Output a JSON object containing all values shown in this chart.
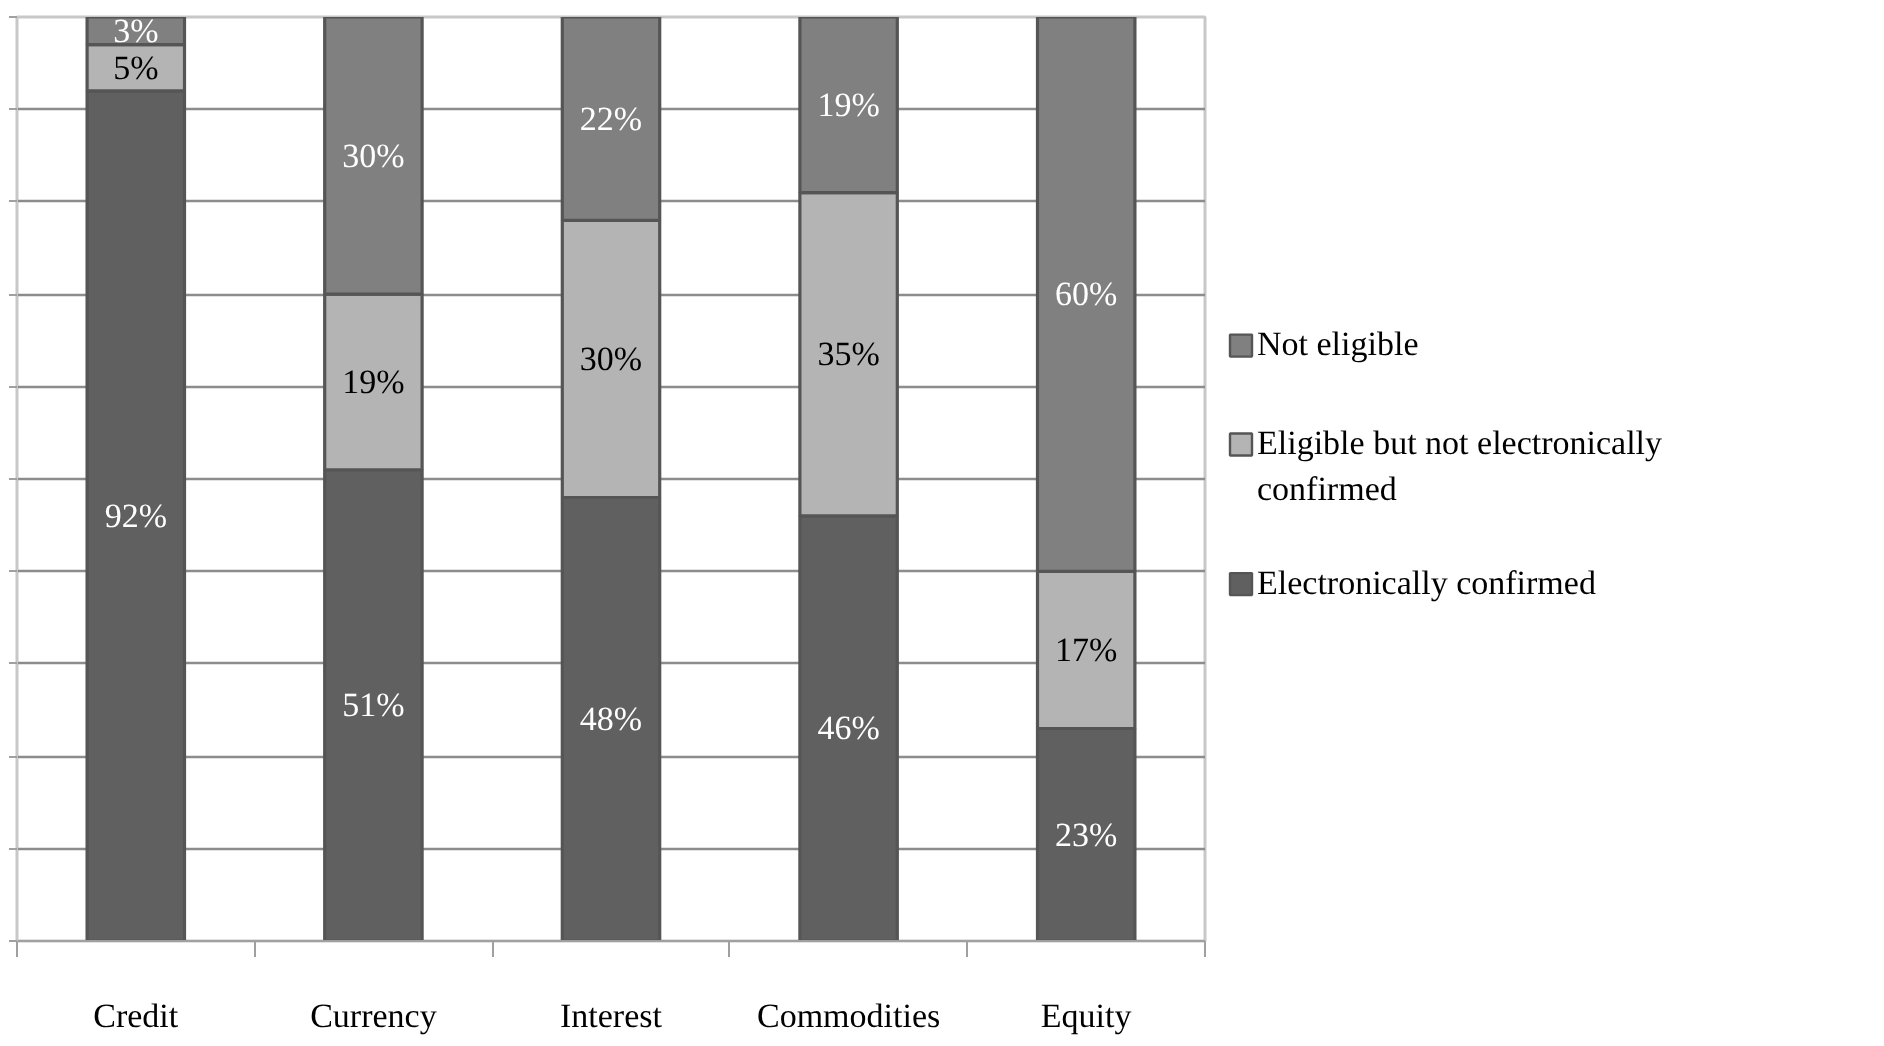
{
  "chart_data": {
    "type": "bar",
    "stacked": true,
    "categories": [
      "Credit",
      "Currency",
      "Interest",
      "Commodities",
      "Equity"
    ],
    "series": [
      {
        "name": "Electronically confirmed",
        "color": "#606060",
        "values": [
          92,
          51,
          48,
          46,
          23
        ],
        "value_labels": [
          "92%",
          "51%",
          "48%",
          "46%",
          "23%"
        ]
      },
      {
        "name": "Eligible but not electronically confirmed",
        "color": "#b4b4b4",
        "values": [
          5,
          19,
          30,
          35,
          17
        ],
        "value_labels": [
          "5%",
          "19%",
          "30%",
          "35%",
          "17%"
        ]
      },
      {
        "name": "Not eligible",
        "color": "#808080",
        "values": [
          3,
          30,
          22,
          19,
          60
        ],
        "value_labels": [
          "3%",
          "30%",
          "22%",
          "19%",
          "60%"
        ]
      }
    ],
    "ylim": [
      0,
      100
    ],
    "yticks": [
      {
        "value": 0,
        "label": null
      },
      {
        "value": 10,
        "label": null
      },
      {
        "value": 20,
        "label": null
      },
      {
        "value": 30,
        "label": null
      },
      {
        "value": 40,
        "label": null
      },
      {
        "value": 50,
        "label": null
      },
      {
        "value": 60,
        "label": null
      },
      {
        "value": 70,
        "label": null
      },
      {
        "value": 80,
        "label": null
      },
      {
        "value": 90,
        "label": null
      },
      {
        "value": 100,
        "label": null
      }
    ],
    "tick_labels": "x",
    "grid": "y",
    "legend": "right"
  }
}
